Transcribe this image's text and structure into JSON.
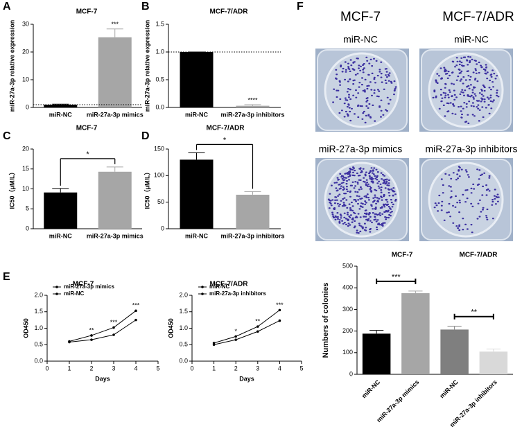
{
  "panel_labels": [
    "A",
    "B",
    "C",
    "D",
    "E",
    "F"
  ],
  "photos": {
    "headers": [
      "MCF-7",
      "MCF-7/ADR"
    ],
    "captions": [
      "miR-NC",
      "miR-NC",
      "miR-27a-3p mimics",
      "miR-27a-3p inhibitors"
    ]
  },
  "chart_data": [
    {
      "type": "bar",
      "title": "MCF-7",
      "y_label": "miR-27a-3p relative expression",
      "categories": [
        "miR-NC",
        "miR-27a-3p mimics"
      ],
      "values": [
        1,
        25.3
      ],
      "errors": [
        0.2,
        3.0
      ],
      "colors": [
        "#000000",
        "#a6a6a6"
      ],
      "ylim": [
        0,
        30
      ],
      "yticks": [
        0,
        10,
        20,
        30
      ],
      "reference_line": 1,
      "significance": [
        {
          "text": "***",
          "bars": [
            1
          ]
        }
      ]
    },
    {
      "type": "bar",
      "title": "MCF-7/ADR",
      "y_label": "miR-27a-3p relative expression",
      "categories": [
        "miR-NC",
        "miR-27a-3p inhibitors"
      ],
      "values": [
        1,
        0.03
      ],
      "errors": [
        0,
        0.02
      ],
      "colors": [
        "#000000",
        "#a6a6a6"
      ],
      "ylim": [
        0,
        1.5
      ],
      "yticks": [
        {
          "value": 0,
          "label": "0.0"
        },
        {
          "value": 0.5,
          "label": "0.5"
        },
        {
          "value": 1,
          "label": "1.0"
        },
        {
          "value": 1.5,
          "label": "1.5"
        }
      ],
      "reference_line": 1,
      "significance": [
        {
          "text": "****",
          "bars": [
            1
          ]
        }
      ]
    },
    {
      "type": "bar",
      "title": "MCF-7",
      "y_label": "IC50（μM/L）",
      "categories": [
        "miR-NC",
        "miR-27a-3p mimics"
      ],
      "values": [
        9.1,
        14.3
      ],
      "errors": [
        1.0,
        1.2
      ],
      "colors": [
        "#000000",
        "#a6a6a6"
      ],
      "ylim": [
        0,
        20
      ],
      "yticks": [
        0,
        5,
        10,
        15,
        20
      ],
      "significance": [
        {
          "text": "*",
          "bars": [
            0,
            1
          ]
        }
      ]
    },
    {
      "type": "bar",
      "title": "MCF-7/ADR",
      "y_label": "IC50（μM/L）",
      "categories": [
        "miR-NC",
        "miR-27a-3p inhibitors"
      ],
      "values": [
        130,
        64
      ],
      "errors": [
        13,
        6
      ],
      "colors": [
        "#000000",
        "#a6a6a6"
      ],
      "ylim": [
        0,
        150
      ],
      "yticks": [
        0,
        50,
        100,
        150
      ],
      "significance": [
        {
          "text": "*",
          "bars": [
            0,
            1
          ]
        }
      ]
    },
    {
      "type": "line",
      "title": "MCF-7",
      "x_label": "Days",
      "y_label": "OD450",
      "x": [
        1,
        2,
        3,
        4
      ],
      "series": [
        {
          "name": "miR-27a-3p mimics",
          "color": "#000000",
          "values": [
            0.6,
            0.78,
            1.02,
            1.53
          ]
        },
        {
          "name": "miR-NC",
          "color": "#000000",
          "values": [
            0.58,
            0.65,
            0.8,
            1.25
          ]
        }
      ],
      "xlim": [
        0,
        5
      ],
      "xticks": [
        0,
        1,
        2,
        3,
        4,
        5
      ],
      "ylim": [
        0,
        2
      ],
      "yticks": [
        {
          "value": 0,
          "label": "0.0"
        },
        {
          "value": 0.5,
          "label": "0.5"
        },
        {
          "value": 1,
          "label": "1.0"
        },
        {
          "value": 1.5,
          "label": "1.5"
        },
        {
          "value": 2,
          "label": "2.0"
        }
      ],
      "significance": [
        {
          "text": "**",
          "x": 2
        },
        {
          "text": "***",
          "x": 3
        },
        {
          "text": "***",
          "x": 4
        }
      ]
    },
    {
      "type": "line",
      "title": "MCF-7/ADR",
      "x_label": "Days",
      "y_label": "OD450",
      "x": [
        1,
        2,
        3,
        4
      ],
      "series": [
        {
          "name": "miR-NC",
          "color": "#000000",
          "values": [
            0.55,
            0.75,
            1.05,
            1.55
          ]
        },
        {
          "name": "miR-27a-3p inhibitors",
          "color": "#000000",
          "values": [
            0.5,
            0.65,
            0.9,
            1.23
          ]
        }
      ],
      "xlim": [
        0,
        5
      ],
      "xticks": [
        0,
        1,
        2,
        3,
        4,
        5
      ],
      "ylim": [
        0,
        2
      ],
      "yticks": [
        {
          "value": 0,
          "label": "0.0"
        },
        {
          "value": 0.5,
          "label": "0.5"
        },
        {
          "value": 1,
          "label": "1.0"
        },
        {
          "value": 1.5,
          "label": "1.5"
        },
        {
          "value": 2,
          "label": "2.0"
        }
      ],
      "significance": [
        {
          "text": "*",
          "x": 2
        },
        {
          "text": "**",
          "x": 3
        },
        {
          "text": "***",
          "x": 4
        }
      ]
    },
    {
      "type": "bar",
      "titles": [
        "MCF-7",
        "MCF-7/ADR"
      ],
      "y_label": "Numbers of colonies",
      "categories": [
        "miR-NC",
        "miR-27a-3p mimics",
        "miR-NC",
        "miR-27a-3p inhibitors"
      ],
      "values": [
        188,
        375,
        207,
        105
      ],
      "errors": [
        15,
        10,
        15,
        12
      ],
      "colors": [
        "#000000",
        "#a6a6a6",
        "#7f7f7f",
        "#d9d9d9"
      ],
      "ylim": [
        0,
        500
      ],
      "yticks": [
        0,
        100,
        200,
        300,
        400,
        500
      ],
      "significance": [
        {
          "text": "***",
          "bars": [
            0,
            1
          ]
        },
        {
          "text": "**",
          "bars": [
            2,
            3
          ]
        }
      ]
    }
  ]
}
